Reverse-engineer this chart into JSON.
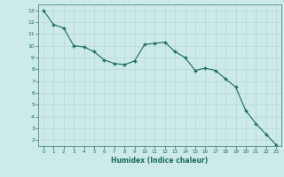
{
  "x": [
    0,
    1,
    2,
    3,
    4,
    5,
    6,
    7,
    8,
    9,
    10,
    11,
    12,
    13,
    14,
    15,
    16,
    17,
    18,
    19,
    20,
    21,
    22,
    23
  ],
  "y": [
    13.0,
    11.8,
    11.5,
    10.0,
    9.9,
    9.5,
    8.8,
    8.5,
    8.4,
    8.7,
    10.1,
    10.2,
    10.3,
    9.5,
    9.0,
    7.9,
    8.1,
    7.9,
    7.2,
    6.5,
    4.5,
    3.4,
    2.5,
    1.6
  ],
  "xlim": [
    -0.5,
    23.5
  ],
  "ylim": [
    1.5,
    13.5
  ],
  "xticks": [
    0,
    1,
    2,
    3,
    4,
    5,
    6,
    7,
    8,
    9,
    10,
    11,
    12,
    13,
    14,
    15,
    16,
    17,
    18,
    19,
    20,
    21,
    22,
    23
  ],
  "yticks": [
    2,
    3,
    4,
    5,
    6,
    7,
    8,
    9,
    10,
    11,
    12,
    13
  ],
  "xlabel": "Humidex (Indice chaleur)",
  "line_color": "#1a6b5a",
  "marker_color": "#1a6b5a",
  "bg_color": "#cceae7",
  "grid_color": "#b8d8d4",
  "tick_label_color": "#1a6b5a",
  "xlabel_color": "#1a6b5a",
  "border_color": "#5a9a8a"
}
